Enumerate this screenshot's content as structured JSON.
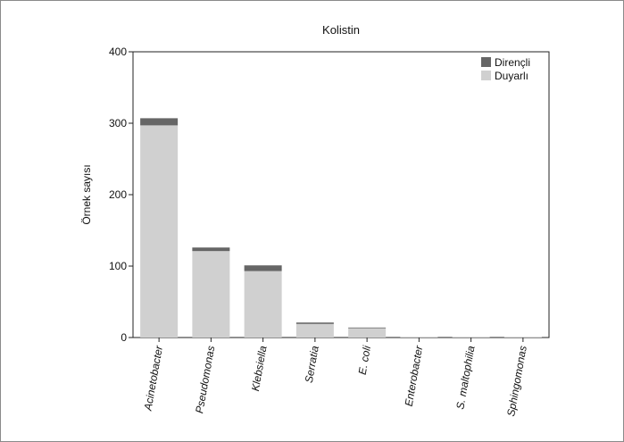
{
  "chart_data": {
    "type": "bar",
    "stacked": true,
    "title": "Kolistin",
    "ylabel": "Örnek sayısı",
    "xlabel": "",
    "ylim": [
      0,
      400
    ],
    "yticks": [
      0,
      100,
      200,
      300,
      400
    ],
    "grid": false,
    "legend_position": "top-right",
    "categories": [
      "Acinetobacter",
      "Pseudomonas",
      "Klebsiella",
      "Serratia",
      "E. coli",
      "Enterobacter",
      "S. maltophilia",
      "Sphingomonas"
    ],
    "series": [
      {
        "name": "Duyarlı",
        "color": "#d0d0d0",
        "values": [
          297,
          121,
          93,
          19,
          13,
          1,
          1,
          1
        ]
      },
      {
        "name": "Dirençli",
        "color": "#666666",
        "values": [
          10,
          5,
          8,
          2,
          1,
          0,
          0,
          0
        ]
      }
    ],
    "legend_order": [
      "Dirençli",
      "Duyarlı"
    ]
  }
}
